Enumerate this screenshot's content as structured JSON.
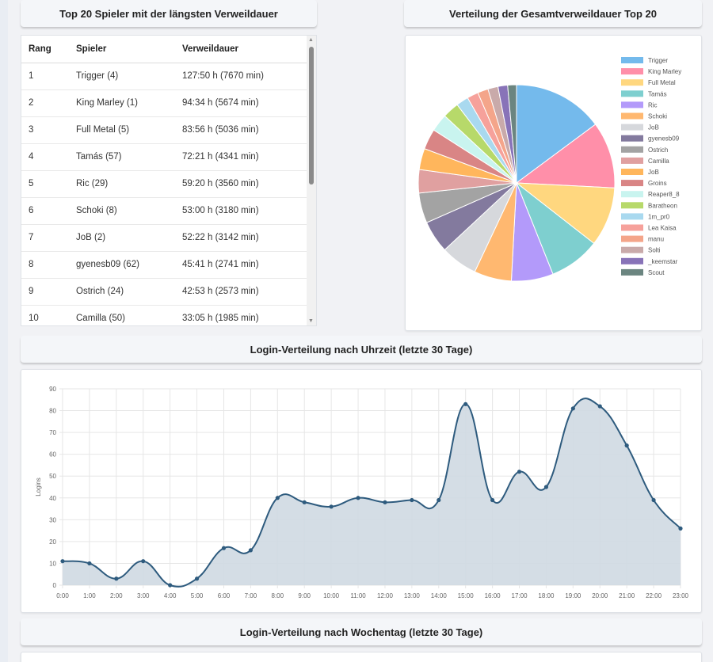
{
  "top_players": {
    "title": "Top 20 Spieler mit der längsten Verweildauer",
    "headers": [
      "Rang",
      "Spieler",
      "Verweildauer"
    ],
    "rows": [
      [
        "1",
        "Trigger (4)",
        "127:50 h (7670 min)"
      ],
      [
        "2",
        "King Marley (1)",
        "94:34 h (5674 min)"
      ],
      [
        "3",
        "Full Metal (5)",
        "83:56 h (5036 min)"
      ],
      [
        "4",
        "Tamás (57)",
        "72:21 h (4341 min)"
      ],
      [
        "5",
        "Ric (29)",
        "59:20 h (3560 min)"
      ],
      [
        "6",
        "Schoki (8)",
        "53:00 h (3180 min)"
      ],
      [
        "7",
        "JoB (2)",
        "52:22 h (3142 min)"
      ],
      [
        "8",
        "gyenesb09 (62)",
        "45:41 h (2741 min)"
      ],
      [
        "9",
        "Ostrich (24)",
        "42:53 h (2573 min)"
      ],
      [
        "10",
        "Camilla (50)",
        "33:05 h (1985 min)"
      ]
    ]
  },
  "pie_section": {
    "title": "Verteilung der Gesamtverweildauer Top 20"
  },
  "line_section": {
    "title": "Login-Verteilung nach Uhrzeit (letzte 30 Tage)"
  },
  "weekday_section": {
    "title": "Login-Verteilung nach Wochentag (letzte 30 Tage)"
  },
  "chart_data": [
    {
      "type": "pie",
      "labels": [
        "Trigger",
        "King Marley",
        "Full Metal",
        "Tamás",
        "Ric",
        "Schoki",
        "JoB",
        "gyenesb09",
        "Ostrich",
        "Camilla",
        "JoB",
        "Groins",
        "Reaper8_8",
        "Baratheon",
        "1m_pr0",
        "Lea Kaisa",
        "manu",
        "Solti",
        "_keemstar",
        "Scout"
      ],
      "values": [
        7670,
        5674,
        5036,
        4341,
        3560,
        3180,
        3142,
        2741,
        2573,
        1985,
        1800,
        1750,
        1500,
        1400,
        1050,
        960,
        900,
        860,
        820,
        750
      ],
      "colors": [
        "#74baec",
        "#ff8fa9",
        "#ffd77f",
        "#7ecfcf",
        "#b39afa",
        "#ffb870",
        "#d6d8dc",
        "#837a9e",
        "#a3a3a3",
        "#e0a0a0",
        "#ffb65c",
        "#d98585",
        "#c9f4ef",
        "#b7d96a",
        "#a9d9ef",
        "#f6a19b",
        "#f4a58a",
        "#c9aaaa",
        "#8873b8",
        "#6b8580"
      ],
      "legend_position": "right"
    },
    {
      "type": "area",
      "x": [
        "0:00",
        "1:00",
        "2:00",
        "3:00",
        "4:00",
        "5:00",
        "6:00",
        "7:00",
        "8:00",
        "9:00",
        "10:00",
        "11:00",
        "12:00",
        "13:00",
        "14:00",
        "15:00",
        "16:00",
        "17:00",
        "18:00",
        "19:00",
        "20:00",
        "21:00",
        "22:00",
        "23:00"
      ],
      "values": [
        11,
        10,
        3,
        11,
        0,
        3,
        17,
        16,
        40,
        38,
        36,
        40,
        38,
        39,
        39,
        83,
        39,
        52,
        45,
        81,
        82,
        64,
        39,
        26
      ],
      "ylabel": "Logins",
      "ylim": [
        0,
        90
      ],
      "yticks": [
        0,
        10,
        20,
        30,
        40,
        50,
        60,
        70,
        80,
        90
      ],
      "grid": true,
      "line_color": "#2e5b7e",
      "fill_color": "#cfd9e2"
    }
  ]
}
